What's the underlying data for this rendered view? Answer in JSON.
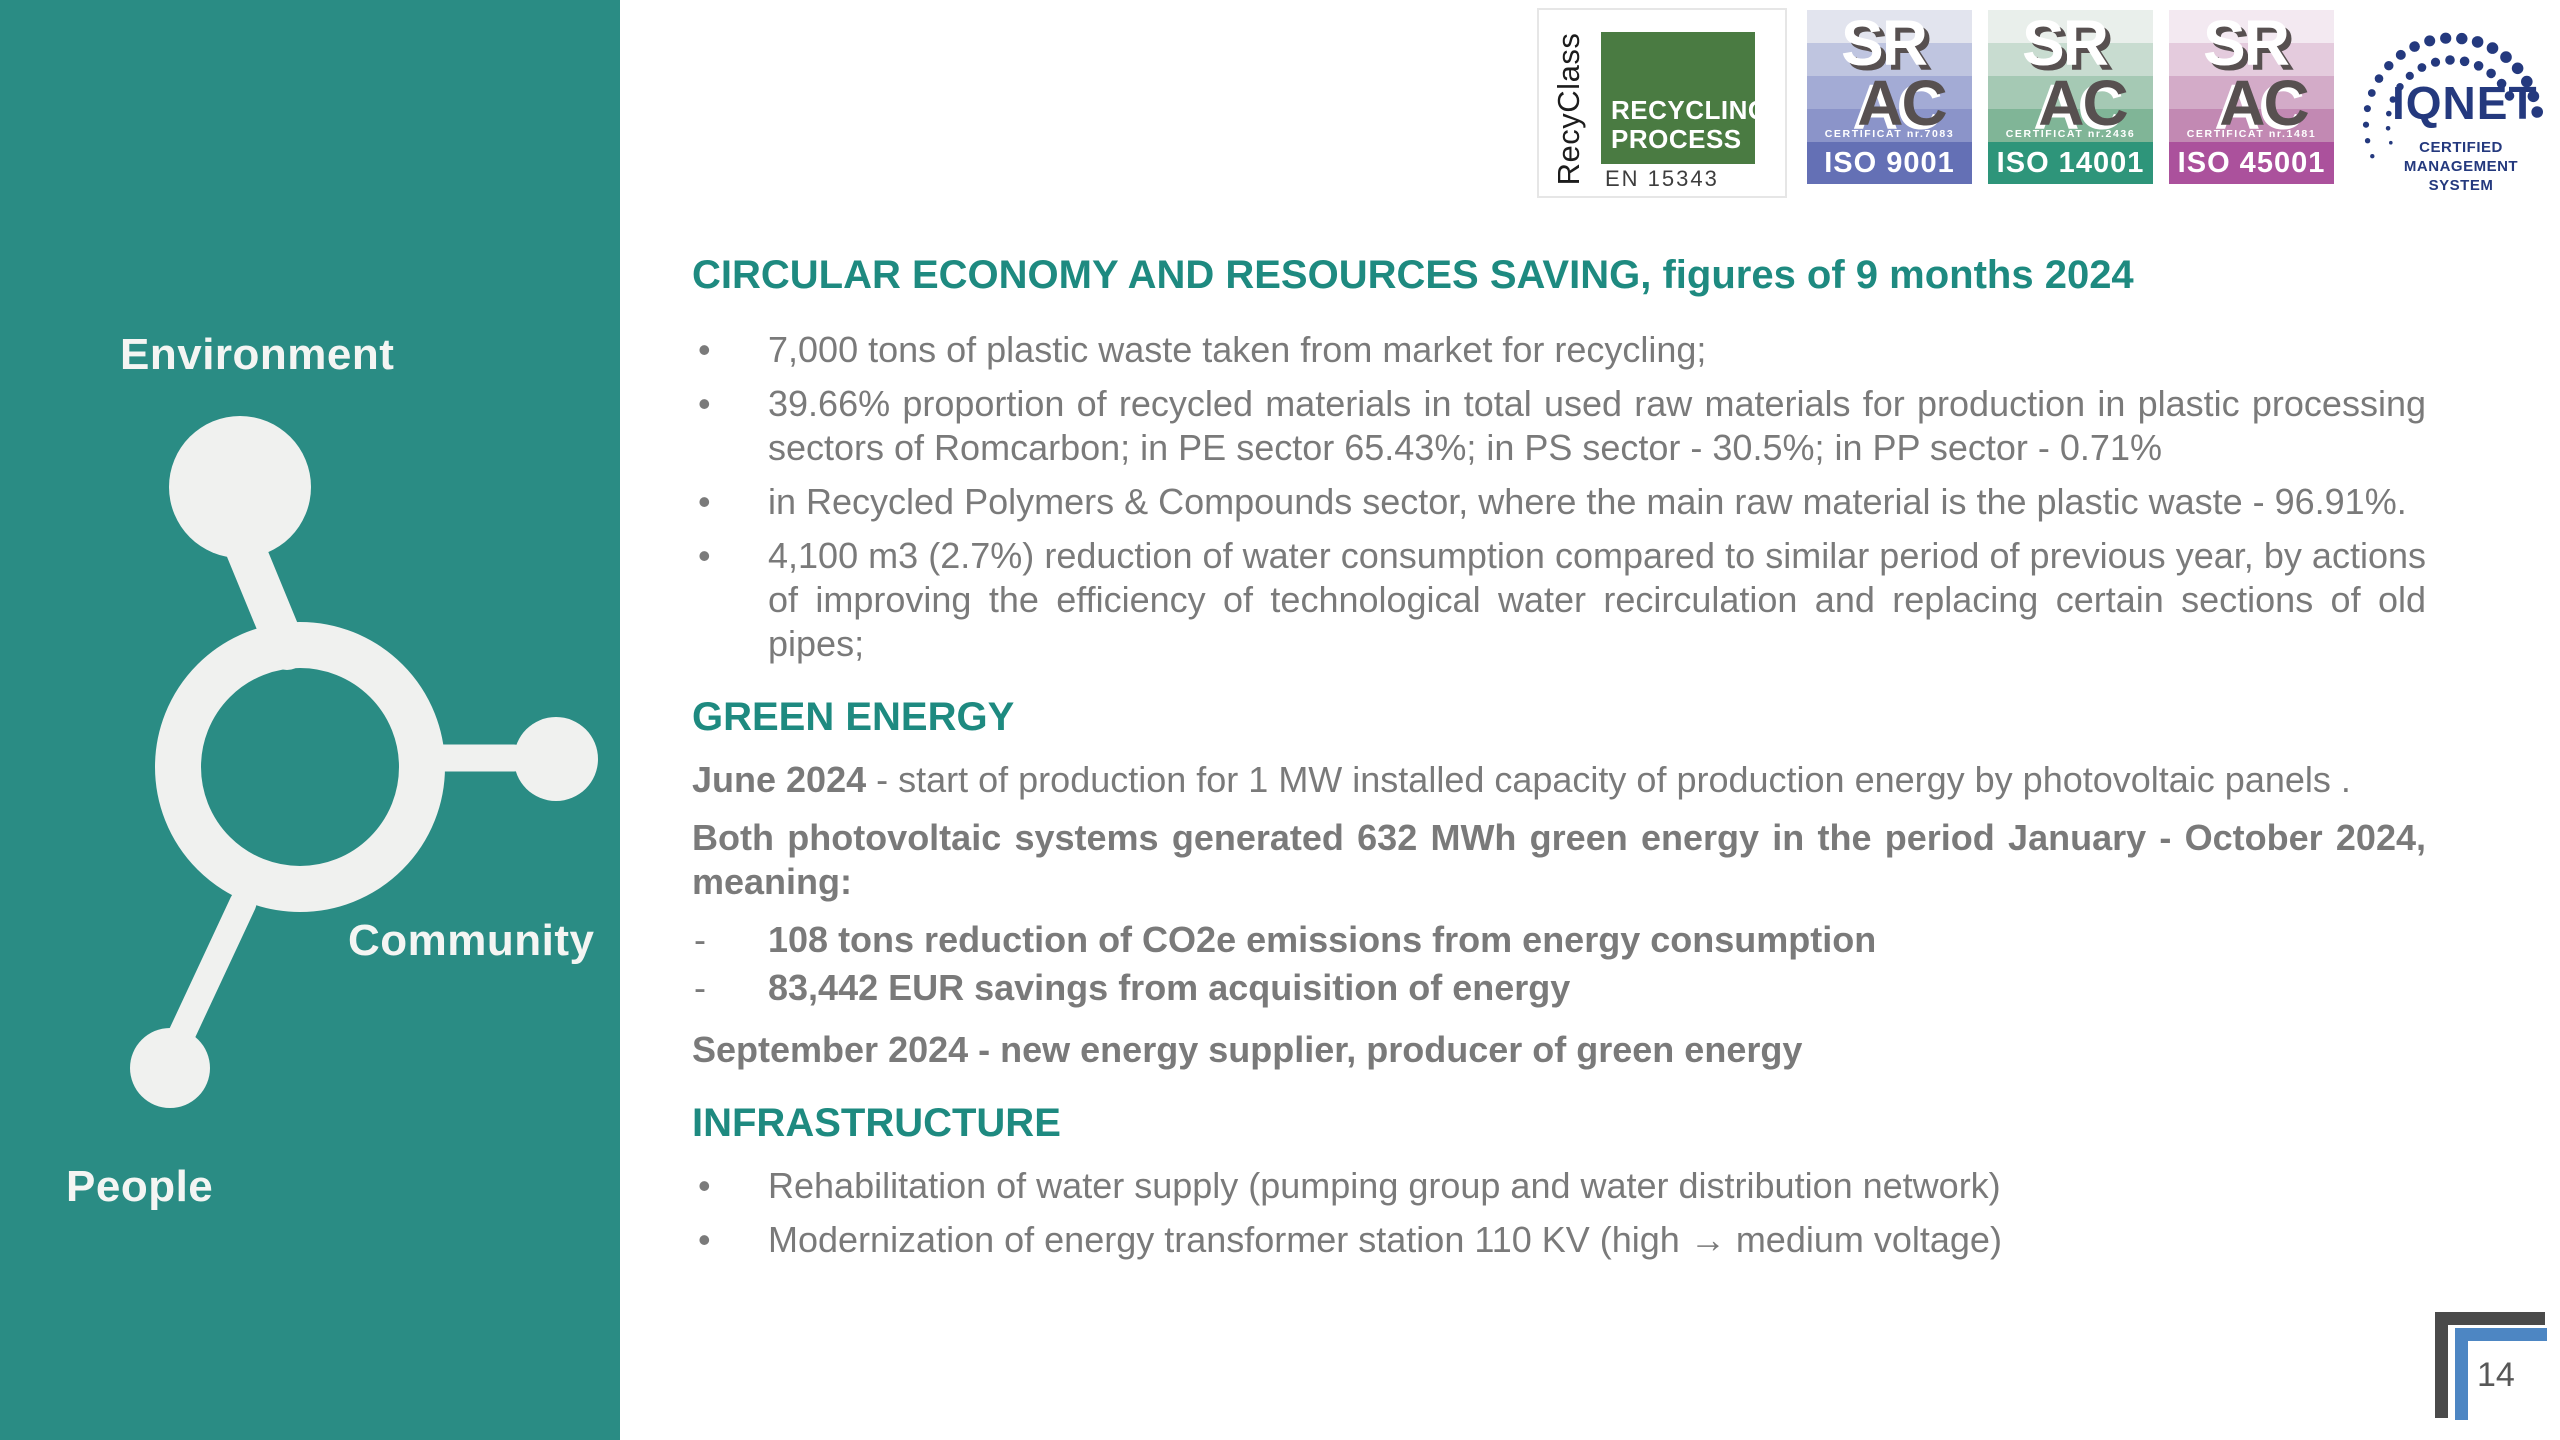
{
  "colors": {
    "sidebar_teal": "#2a8c84",
    "heading_teal": "#1e8a80",
    "body_gray": "#7a7a7a",
    "corner_dark": "#4a4a4a",
    "corner_blue": "#4d86c3",
    "iqnet_navy": "#24397e",
    "recyclass_green": "#4a7b42",
    "off_white": "#f0f1ef"
  },
  "sidebar": {
    "labels": {
      "environment": "Environment",
      "community": "Community",
      "people": "People"
    }
  },
  "logos": {
    "recyclass": {
      "vertical": "RecyClass",
      "line1": "RECYCLING",
      "line2": "PROCESS",
      "standard": "EN 15343"
    },
    "srac": [
      {
        "sr": "SR",
        "ac": "AC",
        "certificate": "CERTIFICAT nr.7083",
        "iso": "ISO 9001",
        "bands": [
          "#e2e4ee",
          "#bfc5e0",
          "#a3abd5",
          "#8b94c9"
        ],
        "iso_bg": "#6470b5"
      },
      {
        "sr": "SR",
        "ac": "AC",
        "certificate": "CERTIFICAT nr.2436",
        "iso": "ISO 14001",
        "bands": [
          "#e9efeb",
          "#c8dcd0",
          "#a5c9b4",
          "#80b597"
        ],
        "iso_bg": "#2e957a"
      },
      {
        "sr": "SR",
        "ac": "AC",
        "certificate": "CERTIFICAT nr.1481",
        "iso": "ISO 45001",
        "bands": [
          "#f3e9f1",
          "#e4cbdd",
          "#d3abc8",
          "#c289b3"
        ],
        "iso_bg": "#ab519c"
      }
    ],
    "iqnet": {
      "name": "IQNET",
      "lines": [
        "CERTIFIED",
        "MANAGEMENT",
        "SYSTEM"
      ]
    }
  },
  "content": {
    "bullet_marker": "•",
    "dash_marker": "-",
    "title": "CIRCULAR ECONOMY AND RESOURCES SAVING, figures of 9 months 2024",
    "bullets": [
      "7,000 tons of plastic waste taken from market for recycling;",
      "39.66% proportion of recycled materials in total used raw materials for production in plastic processing sectors of Romcarbon; in PE sector 65.43%; in PS sector - 30.5%; in PP sector - 0.71%",
      "in Recycled Polymers & Compounds sector, where the main raw material is the plastic waste - 96.91%.",
      "4,100 m3 (2.7%) reduction of water consumption compared to similar period of previous year, by actions of improving the efficiency of technological water recirculation and replacing certain sections of old pipes;"
    ],
    "green": {
      "heading": "GREEN ENERGY",
      "june_label": "June 2024",
      "june_rest": " - start of production for 1 MW installed capacity of production energy by photovoltaic panels .",
      "both": "Both photovoltaic systems generated 632 MWh green energy in the period January - October 2024, meaning:",
      "items": [
        "108 tons reduction of CO2e emissions from energy consumption",
        "83,442 EUR savings from acquisition of energy"
      ],
      "september": "September 2024 - new energy supplier, producer of green energy"
    },
    "infrastructure": {
      "heading": "INFRASTRUCTURE",
      "bullets": [
        "Rehabilitation of water supply (pumping group and water distribution network)",
        "Modernization of energy transformer station 110 KV (high → medium voltage)"
      ]
    }
  },
  "page": {
    "number": "14"
  }
}
